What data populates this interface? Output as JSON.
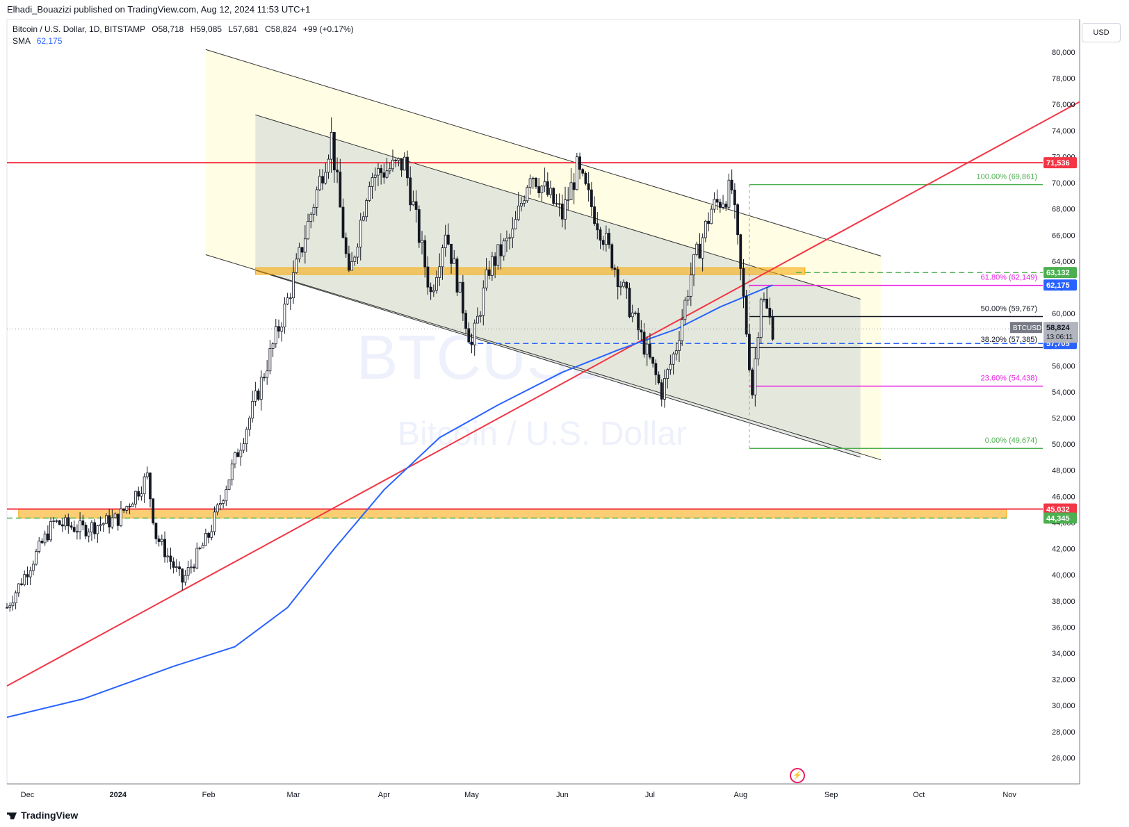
{
  "publisher": "Elhadi_Bouazizi published on TradingView.com, Aug 12, 2024 11:53 UTC+1",
  "legend": {
    "symbol": "Bitcoin / U.S. Dollar, 1D, BITSTAMP",
    "open": "O58,718",
    "high": "H59,085",
    "low": "L57,681",
    "close": "C58,824",
    "change": "+99 (+0.17%)",
    "sma_label": "SMA",
    "sma_value": "62,175"
  },
  "currency": "USD",
  "branding": "TradingView",
  "watermark": {
    "line1": "BTCUSD, 1D",
    "line2": "Bitcoin / U.S. Dollar"
  },
  "colors": {
    "up": "#089981",
    "candle": "#131722",
    "sma": "#2962ff",
    "red_line": "#f23645",
    "fib_green": "#4caf50",
    "fib_magenta": "#e91ee3",
    "orange_zone": "#f7a600",
    "channel_outer": "#fffde1",
    "channel_inner": "#d8ded8"
  },
  "chart_data": {
    "type": "candlestick",
    "title": "",
    "x_ticks": [
      "Dec",
      "2024",
      "Feb",
      "Mar",
      "Apr",
      "May",
      "Jun",
      "Jul",
      "Aug",
      "Sep",
      "Oct",
      "Nov"
    ],
    "y_ticks": [
      "80,000",
      "78,000",
      "76,000",
      "74,000",
      "72,000",
      "70,000",
      "68,000",
      "66,000",
      "64,000",
      "62,000",
      "60,000",
      "58,000",
      "56,000",
      "54,000",
      "52,000",
      "50,000",
      "48,000",
      "46,000",
      "44,000",
      "42,000",
      "40,000",
      "38,000",
      "36,000",
      "34,000",
      "32,000",
      "30,000",
      "28,000",
      "26,000"
    ],
    "ylim": [
      24000,
      82500
    ],
    "date_range": [
      "2023-11-24",
      "2024-11-25"
    ],
    "price_labels": [
      {
        "text": "71,536",
        "value": 71536,
        "color": "#f23645"
      },
      {
        "text": "63,132",
        "value": 63132,
        "color": "#4caf50"
      },
      {
        "text": "62,175",
        "value": 62175,
        "color": "#2962ff"
      },
      {
        "text": "57,705",
        "value": 57705,
        "color": "#2962ff"
      },
      {
        "text": "45,032",
        "value": 45032,
        "color": "#f23645"
      },
      {
        "text": "44,345",
        "value": 44345,
        "color": "#4caf50"
      }
    ],
    "last_price": {
      "symbol": "BTCUSD",
      "value_text": "58,824",
      "countdown": "13:06:11",
      "value": 58824
    },
    "fib_levels": [
      {
        "label": "100.00% (69,861)",
        "value": 69861,
        "color": "#4caf50"
      },
      {
        "label": "61.80% (62,149)",
        "value": 62149,
        "color": "#e91ee3"
      },
      {
        "label": "50.00% (59,767)",
        "value": 59767,
        "color": "#131722"
      },
      {
        "label": "38.20% (57,385)",
        "value": 57385,
        "color": "#131722"
      },
      {
        "label": "23.60% (54,438)",
        "value": 54438,
        "color": "#e91ee3"
      },
      {
        "label": "0.00% (49,674)",
        "value": 49674,
        "color": "#4caf50"
      }
    ],
    "horizontal_lines": [
      {
        "value": 71536,
        "color": "#f23645",
        "style": "solid"
      },
      {
        "value": 45032,
        "color": "#f23645",
        "style": "solid"
      },
      {
        "value": 44345,
        "color": "#4caf50",
        "style": "dashed"
      },
      {
        "value": 63132,
        "color": "#4caf50",
        "style": "dashed"
      },
      {
        "value": 57705,
        "color": "#2962ff",
        "style": "dashed"
      }
    ],
    "zones": [
      {
        "from": 44345,
        "to": 45032,
        "color": "#f7a600"
      },
      {
        "from": 63000,
        "to": 63500,
        "color": "#f7a600"
      }
    ],
    "trendline": {
      "from": {
        "date": "2023-11-24",
        "price": 31500
      },
      "to": {
        "date": "2024-11-25",
        "price": 76200
      },
      "color": "#f23645"
    },
    "sma_path": [
      [
        "2023-11-24",
        29100
      ],
      [
        "2023-12-20",
        30500
      ],
      [
        "2024-01-20",
        33000
      ],
      [
        "2024-02-10",
        34500
      ],
      [
        "2024-02-28",
        37500
      ],
      [
        "2024-03-15",
        42000
      ],
      [
        "2024-04-01",
        46500
      ],
      [
        "2024-04-20",
        50500
      ],
      [
        "2024-05-10",
        53000
      ],
      [
        "2024-06-01",
        55500
      ],
      [
        "2024-06-20",
        57200
      ],
      [
        "2024-07-10",
        58800
      ],
      [
        "2024-07-25",
        60500
      ],
      [
        "2024-08-12",
        62175
      ]
    ],
    "price_path": [
      [
        "2023-11-24",
        37500
      ],
      [
        "2023-12-05",
        42000
      ],
      [
        "2023-12-10",
        44000
      ],
      [
        "2023-12-20",
        43500
      ],
      [
        "2024-01-01",
        44300
      ],
      [
        "2024-01-11",
        47500
      ],
      [
        "2024-01-14",
        43000
      ],
      [
        "2024-01-23",
        39500
      ],
      [
        "2024-02-01",
        43000
      ],
      [
        "2024-02-15",
        52000
      ],
      [
        "2024-02-28",
        61000
      ],
      [
        "2024-03-05",
        66000
      ],
      [
        "2024-03-14",
        73500
      ],
      [
        "2024-03-20",
        62500
      ],
      [
        "2024-03-27",
        70500
      ],
      [
        "2024-04-08",
        71500
      ],
      [
        "2024-04-17",
        61500
      ],
      [
        "2024-04-22",
        66500
      ],
      [
        "2024-05-01",
        57500
      ],
      [
        "2024-05-07",
        63500
      ],
      [
        "2024-05-15",
        66000
      ],
      [
        "2024-05-21",
        71000
      ],
      [
        "2024-06-01",
        67500
      ],
      [
        "2024-06-06",
        71000
      ],
      [
        "2024-06-15",
        66000
      ],
      [
        "2024-06-24",
        60500
      ],
      [
        "2024-07-05",
        54000
      ],
      [
        "2024-07-10",
        57500
      ],
      [
        "2024-07-15",
        63000
      ],
      [
        "2024-07-22",
        68000
      ],
      [
        "2024-07-29",
        69500
      ],
      [
        "2024-08-02",
        61000
      ],
      [
        "2024-08-05",
        54000
      ],
      [
        "2024-08-08",
        61500
      ],
      [
        "2024-08-12",
        58824
      ]
    ]
  }
}
